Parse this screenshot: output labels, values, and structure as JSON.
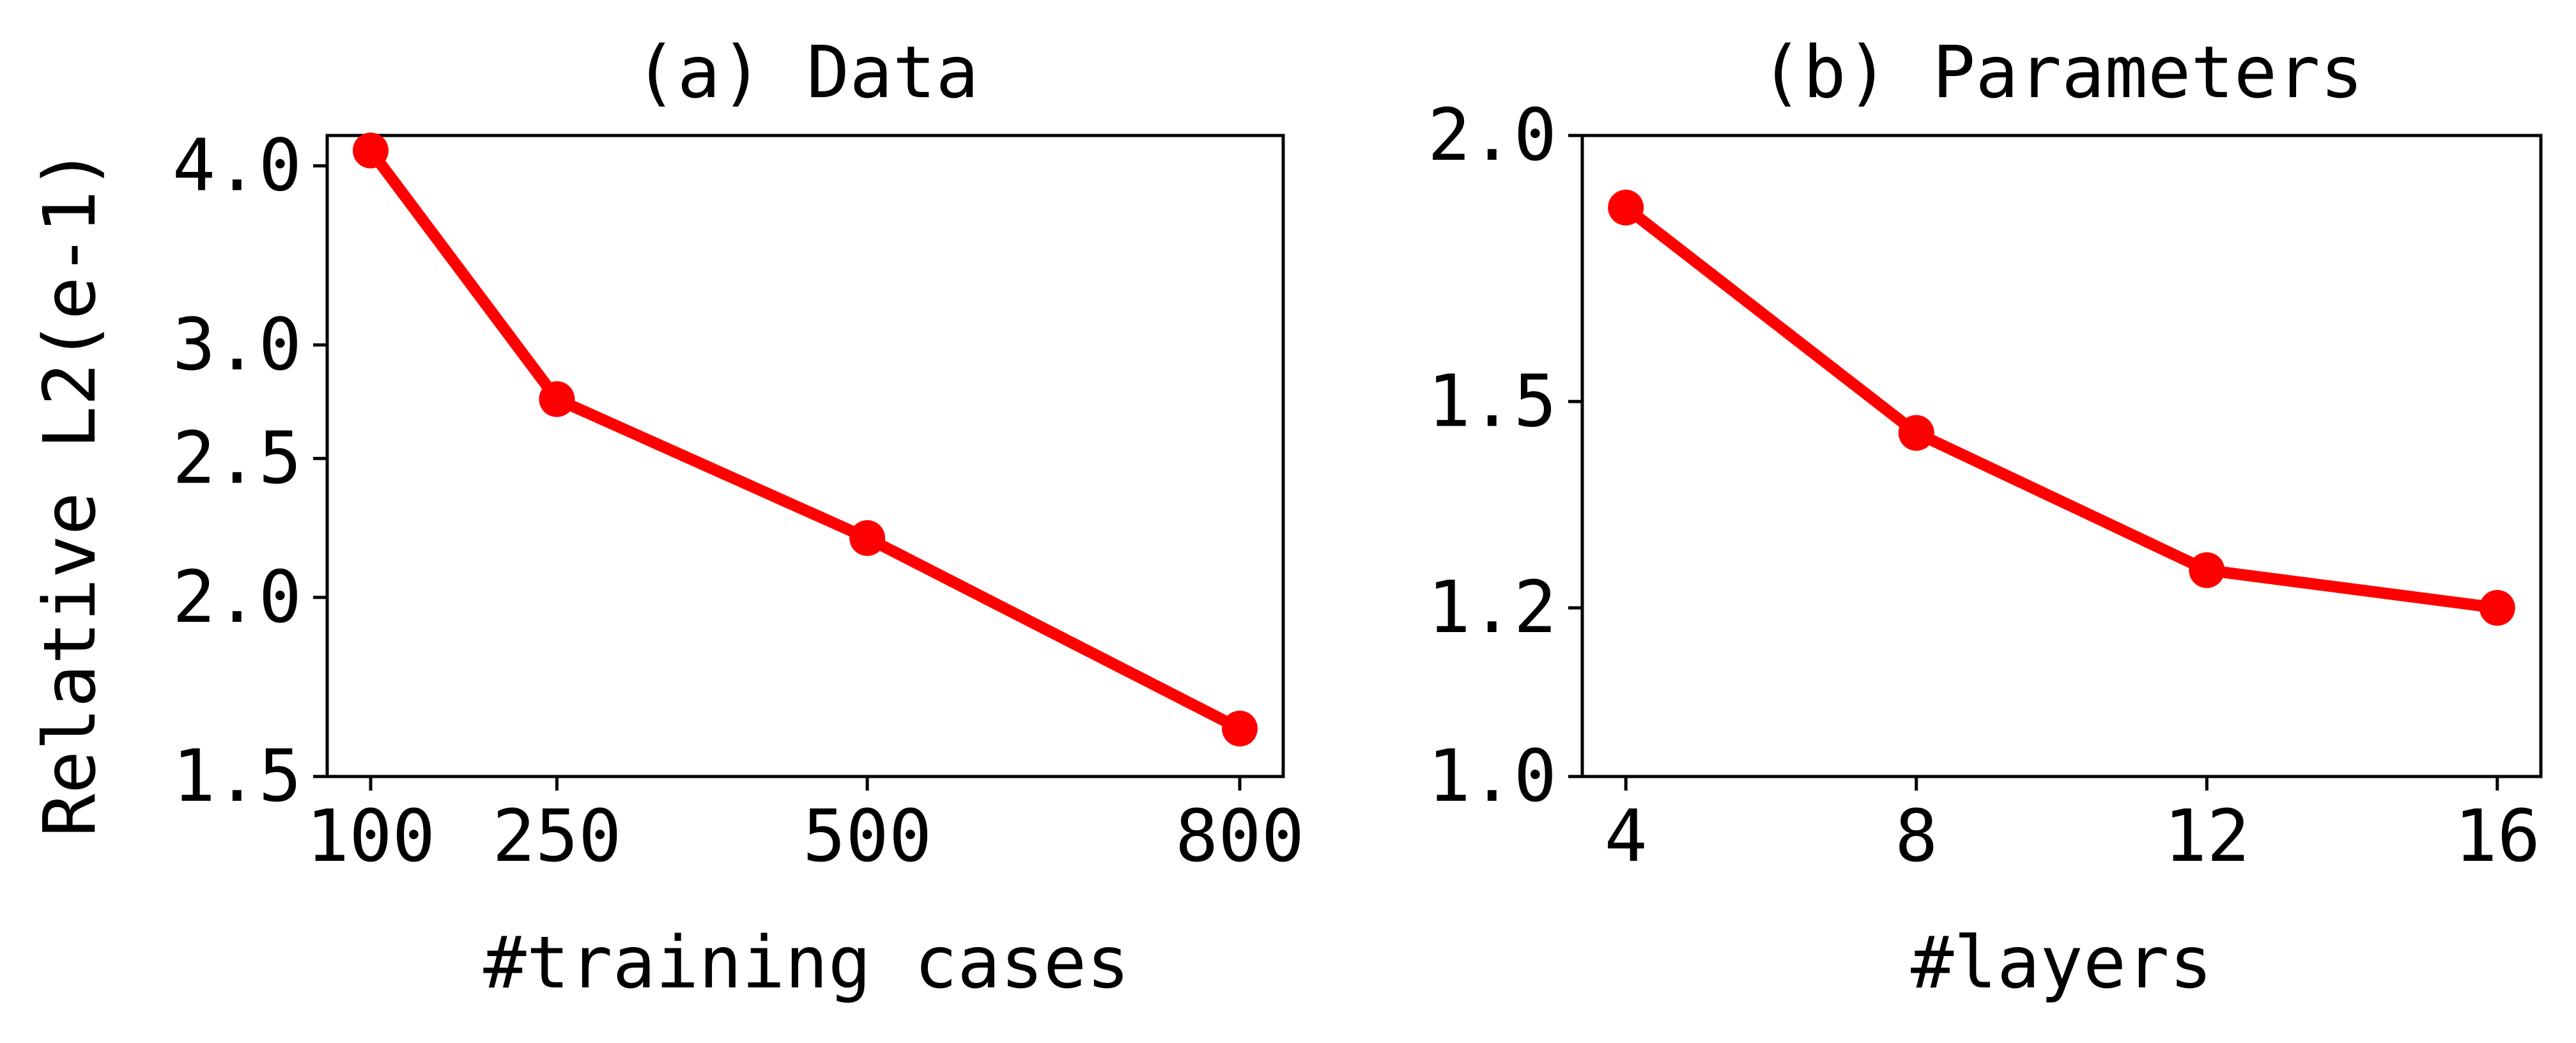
{
  "figure": {
    "shared_ylabel": "Relative L2(e-1)",
    "line_color": "#ff0000",
    "axis_color": "#000000",
    "background": "#ffffff"
  },
  "chart_data": [
    {
      "type": "line",
      "title": "(a) Data",
      "xlabel": "#training cases",
      "ylabel": "Relative L2(e-1)",
      "x": [
        100,
        250,
        500,
        800
      ],
      "xticks": [
        100,
        250,
        500,
        800
      ],
      "xtick_labels": [
        "100",
        "250",
        "500",
        "800"
      ],
      "xlim": [
        65,
        835
      ],
      "y_scale": "log",
      "ylim": [
        1.5,
        4.2
      ],
      "yticks": [
        1.5,
        2.0,
        2.5,
        3.0,
        4.0
      ],
      "ytick_labels": [
        "1.5",
        "2.0",
        "2.5",
        "3.0",
        "4.0"
      ],
      "series": [
        {
          "values": [
            4.1,
            2.75,
            2.2,
            1.62
          ]
        }
      ],
      "grid": false,
      "markers": "circle"
    },
    {
      "type": "line",
      "title": "(b) Parameters",
      "xlabel": "#layers",
      "x": [
        4,
        8,
        12,
        16
      ],
      "xticks": [
        4,
        8,
        12,
        16
      ],
      "xtick_labels": [
        "4",
        "8",
        "12",
        "16"
      ],
      "xlim": [
        3.4,
        16.6
      ],
      "y_scale": "log",
      "ylim": [
        1.0,
        2.0
      ],
      "yticks": [
        1.0,
        1.2,
        1.5,
        2.0
      ],
      "ytick_labels": [
        "1.0",
        "1.2",
        "1.5",
        "2.0"
      ],
      "series": [
        {
          "values": [
            1.85,
            1.45,
            1.25,
            1.2
          ]
        }
      ],
      "grid": false,
      "markers": "circle"
    }
  ]
}
